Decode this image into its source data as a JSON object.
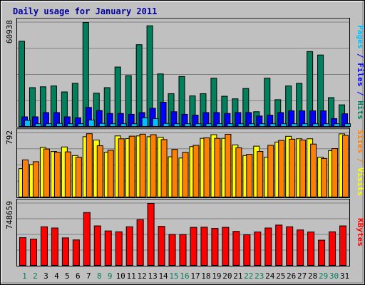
{
  "chart_data": {
    "type": "bar",
    "title": "Daily usage for January 2011",
    "categories": [
      "1",
      "2",
      "3",
      "4",
      "5",
      "6",
      "7",
      "8",
      "9",
      "10",
      "11",
      "12",
      "13",
      "14",
      "15",
      "16",
      "17",
      "18",
      "19",
      "20",
      "21",
      "22",
      "23",
      "24",
      "25",
      "26",
      "27",
      "28",
      "29",
      "30",
      "31"
    ],
    "weekend_days": [
      "1",
      "2",
      "8",
      "9",
      "15",
      "16",
      "22",
      "23",
      "29",
      "30"
    ],
    "panels": [
      {
        "name": "hits-files-pages",
        "ymax": 60938,
        "ytick_label": "60938",
        "side_label": [
          "Pages",
          "Files",
          "Hits"
        ],
        "side_label_separator": " / ",
        "series": [
          {
            "name": "Hits",
            "color": "#00805c",
            "values": [
              50000,
              23000,
              23500,
              24000,
              20500,
              25500,
              60938,
              19800,
              23000,
              35000,
              30000,
              48000,
              59000,
              31000,
              19500,
              29500,
              18200,
              19500,
              28500,
              18000,
              16500,
              22500,
              9000,
              28500,
              16000,
              24000,
              25500,
              44000,
              42000,
              17200,
              13000
            ]
          },
          {
            "name": "Files",
            "color": "#0000ff",
            "values": [
              6000,
              6000,
              8500,
              8500,
              6000,
              5500,
              11500,
              9700,
              8000,
              8000,
              7500,
              8500,
              11000,
              14500,
              9000,
              7500,
              7000,
              8500,
              8500,
              8000,
              8500,
              8500,
              6500,
              7000,
              8500,
              9500,
              9500,
              9500,
              9500,
              5000,
              7800
            ]
          },
          {
            "name": "Pages",
            "color": "#00c0ff",
            "values": [
              4000,
              2000,
              2000,
              2200,
              2000,
              2000,
              4200,
              2200,
              2000,
              2000,
              2000,
              5500,
              5000,
              2200,
              2000,
              2000,
              2000,
              2000,
              2000,
              2000,
              2000,
              2000,
              2000,
              2000,
              2000,
              2000,
              2000,
              2000,
              2000,
              2000,
              2000
            ]
          }
        ]
      },
      {
        "name": "visits-sites",
        "ymax": 792,
        "ytick_label": "792",
        "side_label": [
          "Sites",
          "Visits"
        ],
        "side_label_separator": " / ",
        "series": [
          {
            "name": "Visits",
            "color": "#ffff00",
            "values": [
              355,
              405,
              614,
              565,
              620,
              515,
              745,
              705,
              555,
              755,
              722,
              755,
              745,
              740,
              500,
              485,
              624,
              725,
              770,
              725,
              645,
              515,
              630,
              495,
              680,
              750,
              720,
              720,
              495,
              575,
              780
            ]
          },
          {
            "name": "Sites",
            "color": "#ff8000",
            "values": [
              462,
              440,
              595,
              556,
              560,
              495,
              782,
              635,
              580,
              720,
              752,
              776,
              770,
              710,
              590,
              555,
              640,
              732,
              725,
              775,
              610,
              530,
              565,
              640,
              700,
              715,
              705,
              655,
              480,
              600,
              762
            ]
          }
        ]
      },
      {
        "name": "kbytes",
        "ymax": 748659,
        "ytick_label": "748659",
        "side_label": [
          "KBytes"
        ],
        "side_label_separator": "",
        "series": [
          {
            "name": "KBytes",
            "color": "#ff0000",
            "values": [
              340000,
              322000,
              470000,
              455000,
              337000,
              313000,
              640000,
              480000,
              420000,
              410000,
              470000,
              555000,
              748659,
              475000,
              378000,
              377000,
              463000,
              465000,
              450000,
              463000,
              415000,
              375000,
              408000,
              455000,
              490000,
              470000,
              432000,
              408000,
              310000,
              410000,
              480000
            ]
          }
        ]
      }
    ]
  }
}
